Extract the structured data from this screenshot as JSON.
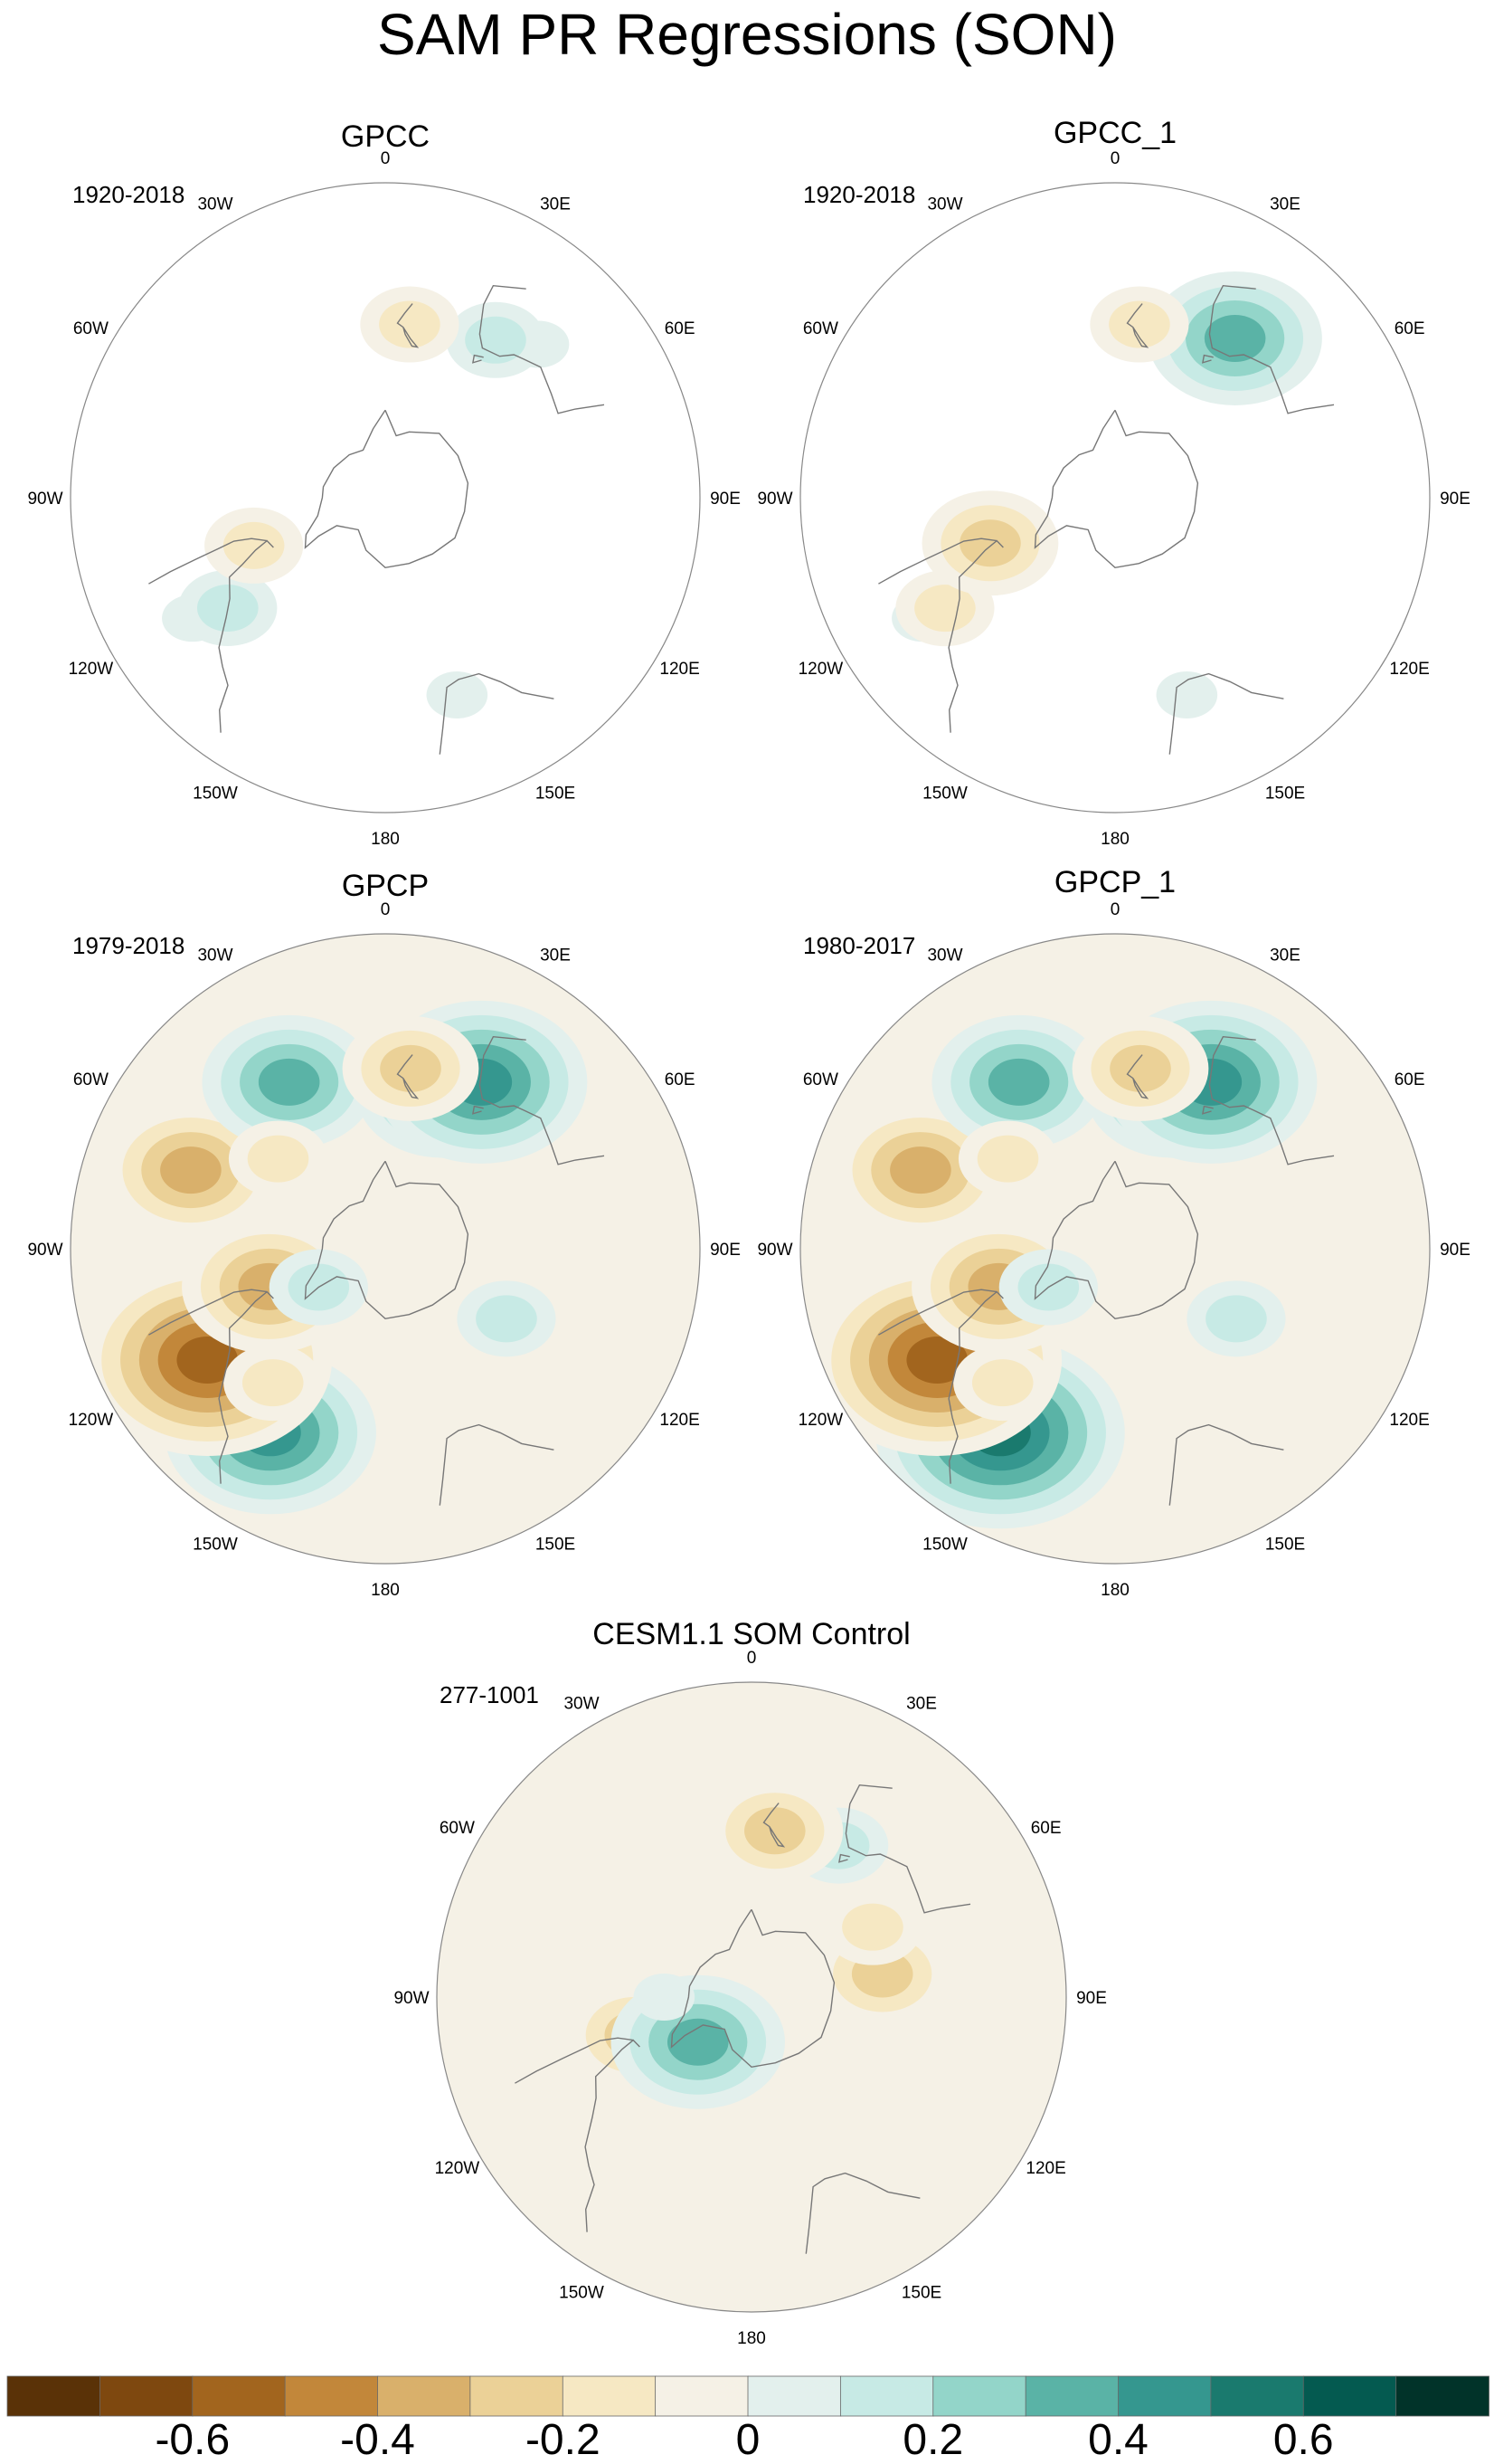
{
  "title": "SAM PR Regressions (SON)",
  "panels": [
    {
      "title": "GPCC",
      "period": "1920-2018",
      "blobs": [
        {
          "lon": -58,
          "lat": -25,
          "value": 0.1
        },
        {
          "lon": -55,
          "lat": -35,
          "value": 0.2
        },
        {
          "lon": -70,
          "lat": -50,
          "value": -0.2
        },
        {
          "lon": 20,
          "lat": -30,
          "value": 0.1
        },
        {
          "lon": 135,
          "lat": -28,
          "value": 0.1
        },
        {
          "lon": 145,
          "lat": -35,
          "value": 0.2
        },
        {
          "lon": 172,
          "lat": -40,
          "value": -0.2
        }
      ]
    },
    {
      "title": "GPCC_1",
      "period": "1920-2018",
      "blobs": [
        {
          "lon": -58,
          "lat": -25,
          "value": 0.1
        },
        {
          "lon": -57,
          "lat": -32,
          "value": -0.2
        },
        {
          "lon": -70,
          "lat": -52,
          "value": -0.3
        },
        {
          "lon": 20,
          "lat": -30,
          "value": 0.1
        },
        {
          "lon": 135,
          "lat": -28,
          "value": 0.1
        },
        {
          "lon": 143,
          "lat": -33,
          "value": 0.4
        },
        {
          "lon": 172,
          "lat": -40,
          "value": -0.2
        }
      ]
    },
    {
      "title": "GPCP",
      "period": "1979-2018",
      "blobs": [
        {
          "lon": -32,
          "lat": -28,
          "value": 0.5
        },
        {
          "lon": -58,
          "lat": -30,
          "value": -0.6
        },
        {
          "lon": -40,
          "lat": -40,
          "value": -0.2
        },
        {
          "lon": -72,
          "lat": -55,
          "value": -0.4
        },
        {
          "lon": -60,
          "lat": -68,
          "value": 0.2
        },
        {
          "lon": 60,
          "lat": -50,
          "value": 0.2
        },
        {
          "lon": -112,
          "lat": -30,
          "value": -0.4
        },
        {
          "lon": -150,
          "lat": -35,
          "value": 0.4
        },
        {
          "lon": 160,
          "lat": -42,
          "value": 0.4
        },
        {
          "lon": 150,
          "lat": -35,
          "value": 0.5
        },
        {
          "lon": 172,
          "lat": -38,
          "value": -0.3
        },
        {
          "lon": -130,
          "lat": -50,
          "value": -0.2
        },
        {
          "lon": 100,
          "lat": -45,
          "value": -0.1
        }
      ]
    },
    {
      "title": "GPCP_1",
      "period": "1980-2017",
      "blobs": [
        {
          "lon": -32,
          "lat": -28,
          "value": 0.6
        },
        {
          "lon": -58,
          "lat": -30,
          "value": -0.6
        },
        {
          "lon": -40,
          "lat": -40,
          "value": -0.2
        },
        {
          "lon": -72,
          "lat": -55,
          "value": -0.4
        },
        {
          "lon": -60,
          "lat": -68,
          "value": 0.2
        },
        {
          "lon": 60,
          "lat": -50,
          "value": 0.2
        },
        {
          "lon": -112,
          "lat": -30,
          "value": -0.4
        },
        {
          "lon": -150,
          "lat": -35,
          "value": 0.4
        },
        {
          "lon": 160,
          "lat": -42,
          "value": 0.4
        },
        {
          "lon": 150,
          "lat": -35,
          "value": 0.5
        },
        {
          "lon": 172,
          "lat": -38,
          "value": -0.3
        },
        {
          "lon": -130,
          "lat": -50,
          "value": -0.2
        },
        {
          "lon": 100,
          "lat": -45,
          "value": -0.1
        }
      ]
    },
    {
      "title": "CESM1.1 SOM Control",
      "period": "277-1001",
      "blobs": [
        {
          "lon": 100,
          "lat": -52,
          "value": -0.3
        },
        {
          "lon": 120,
          "lat": -50,
          "value": -0.2
        },
        {
          "lon": -72,
          "lat": -55,
          "value": -0.3
        },
        {
          "lon": -50,
          "lat": -70,
          "value": 0.4
        },
        {
          "lon": -90,
          "lat": -65,
          "value": 0.1
        },
        {
          "lon": 150,
          "lat": -40,
          "value": 0.2
        },
        {
          "lon": 172,
          "lat": -42,
          "value": -0.3
        },
        {
          "lon": -60,
          "lat": -30,
          "value": -0.1
        }
      ]
    }
  ],
  "lon_labels": [
    "0",
    "30E",
    "60E",
    "90E",
    "120E",
    "150E",
    "180",
    "150W",
    "120W",
    "90W",
    "60W",
    "30W"
  ],
  "colorbar": {
    "colors": [
      "#5a3207",
      "#7e480f",
      "#a2651e",
      "#c2873a",
      "#d9b06b",
      "#ebd197",
      "#f6e8c3",
      "#f5f1e6",
      "#e3f0ed",
      "#c7eae5",
      "#93d5c9",
      "#5ab3a6",
      "#35978f",
      "#1a7a6e",
      "#045a50",
      "#013329"
    ],
    "levels": [
      -0.7,
      -0.6,
      -0.5,
      -0.4,
      -0.3,
      -0.2,
      -0.1,
      0,
      0.1,
      0.2,
      0.3,
      0.4,
      0.5,
      0.6,
      0.7
    ],
    "tick_labels": [
      "-0.6",
      "-0.4",
      "-0.2",
      "0",
      "0.2",
      "0.4",
      "0.6"
    ],
    "tick_values": [
      -0.6,
      -0.4,
      -0.2,
      0,
      0.2,
      0.4,
      0.6
    ]
  },
  "colors": {
    "coast": "#777777",
    "frame": "#888888",
    "background": "#ffffff"
  }
}
